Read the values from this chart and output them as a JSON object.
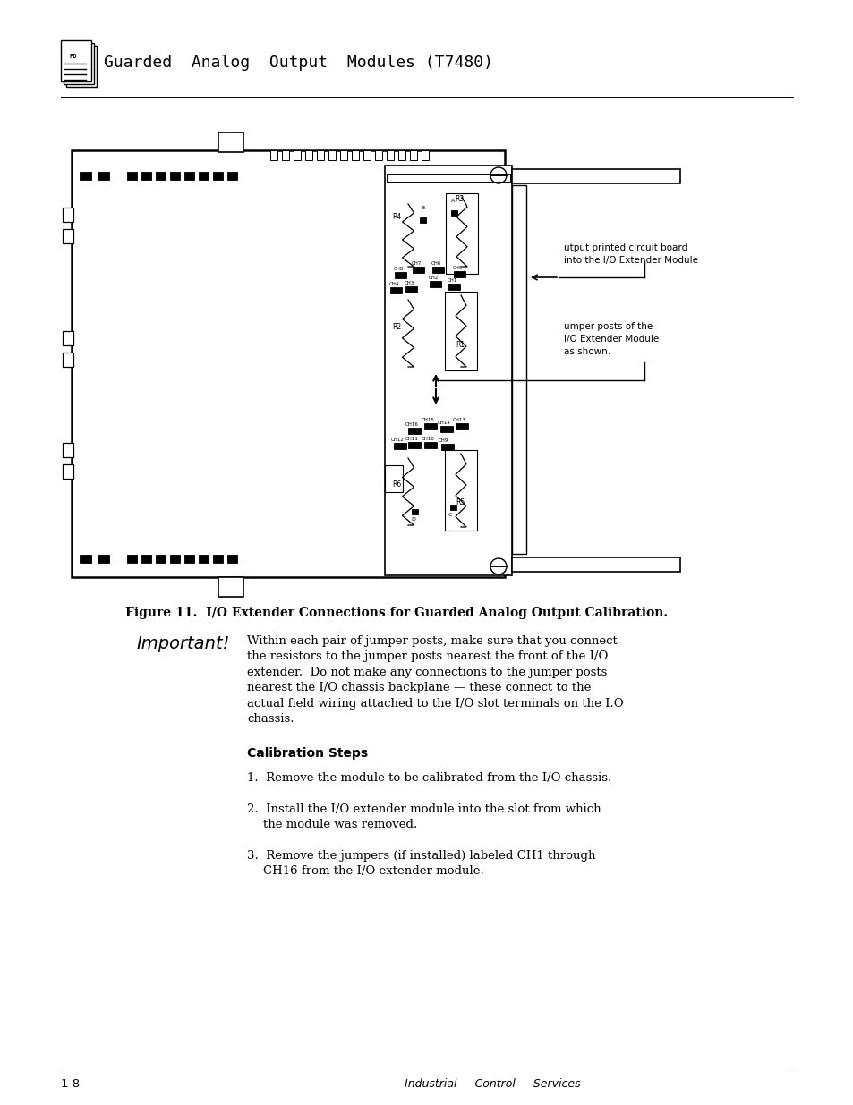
{
  "bg_color": "#ffffff",
  "title_text": "Guarded  Analog  Output  Modules (T7480)",
  "figure_caption": "Figure 11.  I/O Extender Connections for Guarded Analog Output Calibration.",
  "important_label": "Important!",
  "important_text_lines": [
    "Within each pair of jumper posts, make sure that you connect",
    "the resistors to the jumper posts nearest the front of the I/O",
    "extender.  Do not make any connections to the jumper posts",
    "nearest the I/O chassis backplane — these connect to the",
    "actual field wiring attached to the I/O slot terminals on the I.O",
    "chassis."
  ],
  "calib_header": "Calibration Steps",
  "step1": "Remove the module to be calibrated from the I/O chassis.",
  "step2a": "Install the I/O extender module into the slot from which",
  "step2b": "the module was removed.",
  "step3a": "Remove the jumpers (if installed) labeled CH1 through",
  "step3b": "CH16 from the I/O extender module.",
  "footer_left": "1 8",
  "footer_center": "Industrial     Control     Services",
  "annotation1_line1": "utput printed circuit board",
  "annotation1_line2": "into the I/O Extender Module",
  "annotation2_line1": "umper posts of the",
  "annotation2_line2": "I/O Extender Module",
  "annotation2_line3": "as shown."
}
